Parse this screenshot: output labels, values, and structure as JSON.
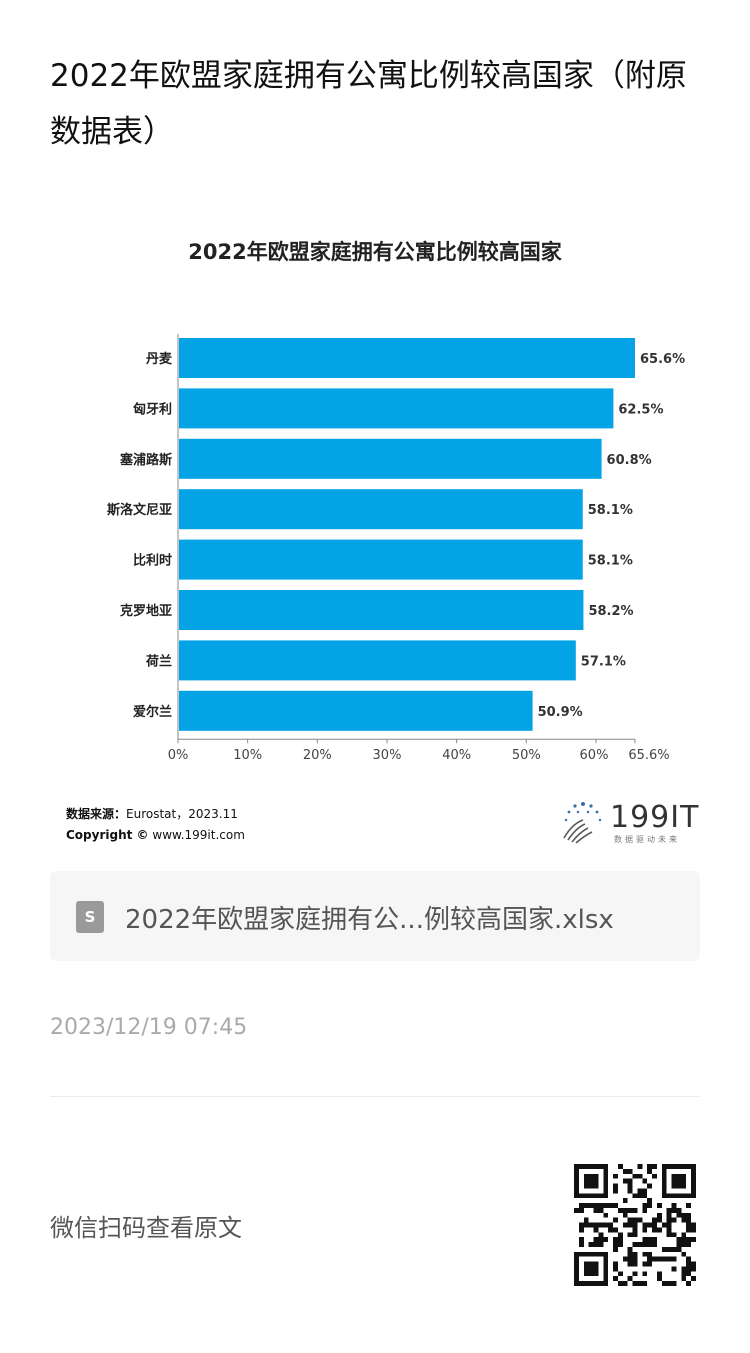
{
  "article": {
    "title": "2022年欧盟家庭拥有公寓比例较高国家（附原数据表）"
  },
  "chart_data": {
    "type": "bar",
    "orientation": "horizontal",
    "title": "2022年欧盟家庭拥有公寓比例较高国家",
    "categories": [
      "丹麦",
      "匈牙利",
      "塞浦路斯",
      "斯洛文尼亚",
      "比利时",
      "克罗地亚",
      "荷兰",
      "爱尔兰"
    ],
    "values": [
      65.6,
      62.5,
      60.8,
      58.1,
      58.1,
      58.2,
      57.1,
      50.9
    ],
    "value_labels": [
      "65.6%",
      "62.5%",
      "60.8%",
      "58.1%",
      "58.1%",
      "58.2%",
      "57.1%",
      "50.9%"
    ],
    "x_ticks": [
      "0%",
      "10%",
      "20%",
      "30%",
      "40%",
      "50%",
      "60%",
      "65.6%"
    ],
    "x_tick_values": [
      0,
      10,
      20,
      30,
      40,
      50,
      60,
      65.6
    ],
    "xlim": [
      0,
      65.6
    ],
    "grid": false,
    "bar_color": "#03a3e6"
  },
  "source": {
    "label": "数据来源：",
    "text": "Eurostat，2023.11",
    "copyright_label": "Copyright ©",
    "copyright_text": "www.199it.com"
  },
  "logo": {
    "name": "199IT",
    "tagline": "数据驱动未来",
    "icon": "dandelion-dots-icon"
  },
  "attachment": {
    "icon": "spreadsheet-file-icon",
    "icon_letter": "S",
    "file_name": "2022年欧盟家庭拥有公...例较高国家.xlsx"
  },
  "meta": {
    "timestamp": "2023/12/19 07:45",
    "wechat_hint": "微信扫码查看原文"
  }
}
